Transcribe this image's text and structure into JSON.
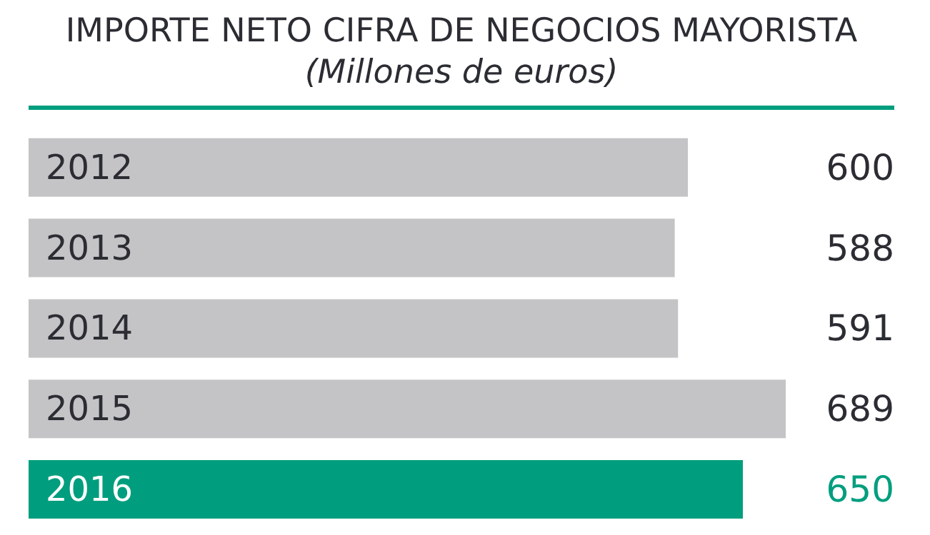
{
  "chart_data": {
    "type": "bar",
    "orientation": "horizontal",
    "title": "IMPORTE NETO CIFRA DE NEGOCIOS MAYORISTA",
    "subtitle": "(Millones de euros)",
    "categories": [
      "2012",
      "2013",
      "2014",
      "2015",
      "2016"
    ],
    "values": [
      600,
      588,
      591,
      689,
      650
    ],
    "colors": [
      "#c4c4c6",
      "#c4c4c6",
      "#c4c4c6",
      "#c4c4c6",
      "#009e7e"
    ],
    "data_labels": true
  }
}
